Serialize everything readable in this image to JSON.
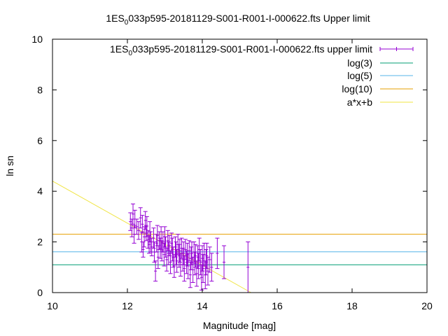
{
  "chart_data": {
    "type": "scatter",
    "title": {
      "prefix": "1ES",
      "subscript": "0",
      "suffix": "033p595-20181129-S001-R001-I-000622.fts Upper limit"
    },
    "xlabel": "Magnitude [mag]",
    "ylabel": "ln sn",
    "xlim": [
      10,
      20
    ],
    "ylim": [
      0,
      10
    ],
    "xticks": [
      "10",
      "12",
      "14",
      "16",
      "18",
      "20"
    ],
    "yticks": [
      "0",
      "2",
      "4",
      "6",
      "8",
      "10"
    ],
    "grid": false,
    "legend_position": "top-right",
    "colors": {
      "points": "#9400d3",
      "log3": "#009e73",
      "log5": "#56b4e9",
      "log10": "#e69f00",
      "fit": "#f0e442",
      "axis": "#000000"
    },
    "series": [
      {
        "name": {
          "prefix": "1ES",
          "subscript": "0",
          "suffix": "033p595-20181129-S001-R001-I-000622.fts upper limit"
        },
        "kind": "errorbars",
        "points": [
          [
            12.08,
            2.8,
            0.35
          ],
          [
            12.12,
            2.55,
            0.35
          ],
          [
            12.15,
            3.1,
            0.4
          ],
          [
            12.18,
            2.3,
            0.35
          ],
          [
            12.2,
            2.9,
            0.35
          ],
          [
            12.25,
            2.6,
            0.3
          ],
          [
            12.3,
            2.45,
            0.35
          ],
          [
            12.35,
            2.95,
            0.4
          ],
          [
            12.38,
            2.0,
            0.4
          ],
          [
            12.4,
            2.7,
            0.35
          ],
          [
            12.42,
            1.7,
            0.3
          ],
          [
            12.45,
            2.2,
            0.4
          ],
          [
            12.48,
            2.85,
            0.35
          ],
          [
            12.5,
            2.35,
            0.3
          ],
          [
            12.52,
            2.6,
            0.4
          ],
          [
            12.55,
            2.1,
            0.35
          ],
          [
            12.58,
            1.9,
            0.35
          ],
          [
            12.6,
            2.4,
            0.4
          ],
          [
            12.62,
            2.0,
            0.4
          ],
          [
            12.65,
            1.8,
            0.35
          ],
          [
            12.7,
            2.15,
            0.4
          ],
          [
            12.72,
            1.6,
            0.4
          ],
          [
            12.75,
            0.85,
            0.4
          ],
          [
            12.78,
            1.95,
            0.35
          ],
          [
            12.8,
            2.25,
            0.4
          ],
          [
            12.82,
            1.4,
            0.45
          ],
          [
            12.85,
            2.05,
            0.35
          ],
          [
            12.88,
            1.75,
            0.4
          ],
          [
            12.9,
            2.15,
            0.45
          ],
          [
            12.92,
            1.65,
            0.4
          ],
          [
            12.95,
            2.0,
            0.4
          ],
          [
            12.98,
            1.5,
            0.45
          ],
          [
            13.0,
            2.2,
            0.4
          ],
          [
            13.02,
            1.8,
            0.4
          ],
          [
            13.05,
            1.3,
            0.45
          ],
          [
            13.08,
            2.05,
            0.4
          ],
          [
            13.1,
            1.55,
            0.45
          ],
          [
            13.12,
            1.85,
            0.4
          ],
          [
            13.15,
            1.2,
            0.45
          ],
          [
            13.18,
            1.95,
            0.4
          ],
          [
            13.2,
            1.7,
            0.45
          ],
          [
            13.22,
            1.4,
            0.4
          ],
          [
            13.25,
            1.05,
            0.45
          ],
          [
            13.28,
            1.8,
            0.4
          ],
          [
            13.3,
            1.55,
            0.45
          ],
          [
            13.32,
            1.25,
            0.45
          ],
          [
            13.35,
            1.9,
            0.4
          ],
          [
            13.38,
            1.45,
            0.45
          ],
          [
            13.4,
            1.65,
            0.45
          ],
          [
            13.42,
            1.1,
            0.45
          ],
          [
            13.45,
            1.75,
            0.4
          ],
          [
            13.48,
            1.3,
            0.45
          ],
          [
            13.5,
            1.55,
            0.45
          ],
          [
            13.52,
            0.95,
            0.5
          ],
          [
            13.55,
            1.7,
            0.4
          ],
          [
            13.58,
            1.2,
            0.45
          ],
          [
            13.6,
            1.5,
            0.45
          ],
          [
            13.62,
            1.05,
            0.5
          ],
          [
            13.65,
            1.65,
            0.4
          ],
          [
            13.68,
            0.7,
            0.5
          ],
          [
            13.7,
            1.35,
            0.45
          ],
          [
            13.72,
            1.55,
            0.45
          ],
          [
            13.75,
            0.9,
            0.5
          ],
          [
            13.78,
            1.6,
            0.4
          ],
          [
            13.8,
            1.15,
            0.45
          ],
          [
            13.82,
            1.45,
            0.45
          ],
          [
            13.85,
            0.75,
            0.5
          ],
          [
            13.88,
            1.4,
            0.45
          ],
          [
            13.9,
            1.05,
            0.5
          ],
          [
            13.92,
            1.7,
            0.45
          ],
          [
            13.95,
            1.2,
            0.5
          ],
          [
            13.98,
            0.6,
            0.5
          ],
          [
            14.0,
            1.35,
            0.5
          ],
          [
            14.02,
            0.95,
            0.55
          ],
          [
            14.05,
            1.5,
            0.45
          ],
          [
            14.08,
            0.7,
            0.55
          ],
          [
            14.1,
            1.2,
            0.5
          ],
          [
            14.12,
            1.45,
            0.5
          ],
          [
            14.15,
            0.85,
            0.55
          ],
          [
            14.2,
            1.3,
            0.5
          ],
          [
            14.25,
            1.0,
            0.55
          ],
          [
            14.4,
            1.55,
            0.6
          ],
          [
            14.58,
            1.2,
            0.65
          ],
          [
            15.22,
            1.0,
            1.0
          ]
        ]
      },
      {
        "name": "log(3)",
        "kind": "hline",
        "y": 1.0986
      },
      {
        "name": "log(5)",
        "kind": "hline",
        "y": 1.6094
      },
      {
        "name": "log(10)",
        "kind": "hline",
        "y": 2.3026
      },
      {
        "name": "a*x+b",
        "kind": "line",
        "a": -0.83,
        "b": 12.7
      }
    ]
  }
}
